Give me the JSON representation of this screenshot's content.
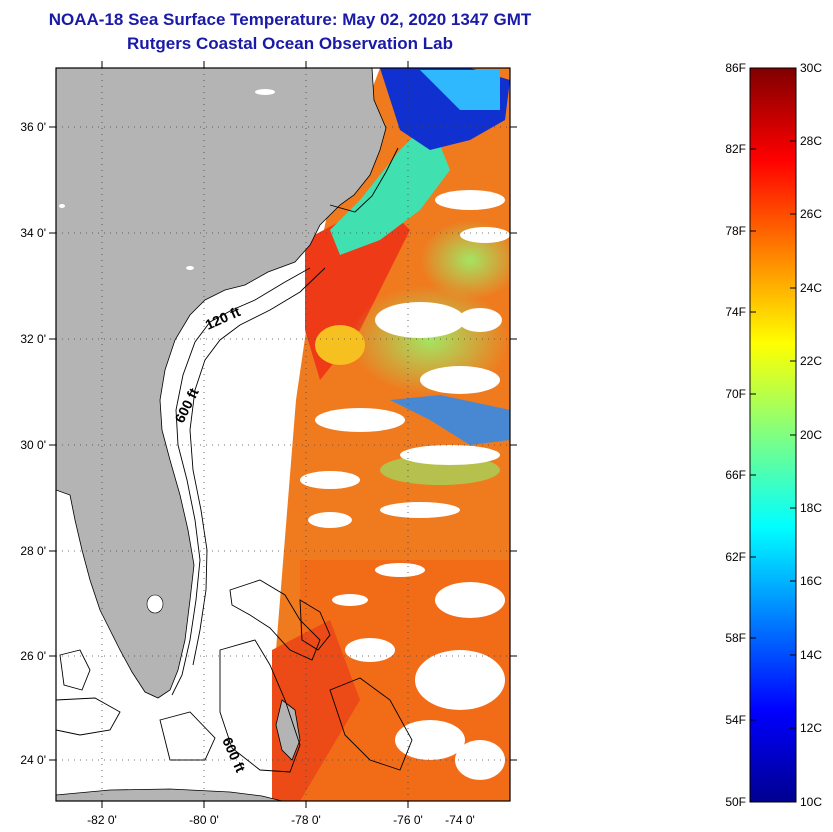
{
  "header": {
    "title": "NOAA-18 Sea Surface Temperature:  May 02, 2020 1347 GMT",
    "subtitle": "Rutgers Coastal Ocean Observation Lab"
  },
  "map": {
    "lon_ticks": [
      "-82 0'",
      "-80 0'",
      "-78 0'",
      "-76 0'",
      "-74 0'"
    ],
    "lat_ticks": [
      "36 0'",
      "34 0'",
      "32 0'",
      "30 0'",
      "28 0'",
      "26 0'",
      "24 0'"
    ],
    "contour_labels": [
      "120 ft",
      "600 ft",
      "600 ft"
    ]
  },
  "colorbar": {
    "f_labels": [
      "86F",
      "82F",
      "78F",
      "74F",
      "70F",
      "66F",
      "62F",
      "58F",
      "54F",
      "50F"
    ],
    "c_labels": [
      "30C",
      "28C",
      "26C",
      "24C",
      "22C",
      "20C",
      "18C",
      "16C",
      "14C",
      "12C",
      "10C"
    ]
  },
  "colors": {
    "land": "#b4b4b4",
    "title": "#1a1aa8"
  }
}
